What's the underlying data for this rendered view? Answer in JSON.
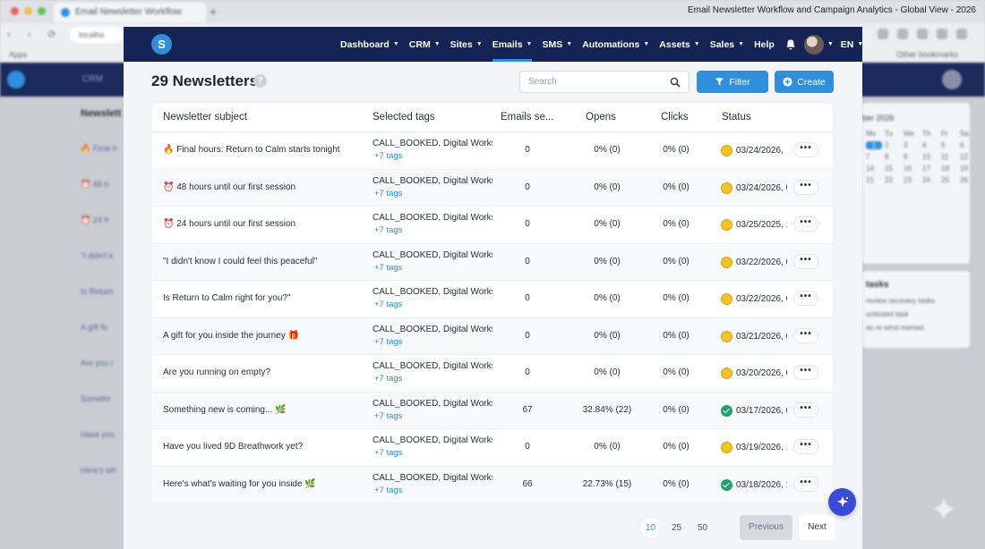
{
  "browser": {
    "tab_title": "Email Newsletter Workflow",
    "url": "localho",
    "bookmarks_left": "Apps",
    "bookmarks_right": "Other bookmarks"
  },
  "window_title": "Email Newsletter Workflow and Campaign Analytics - Global View - 2026",
  "background": {
    "nav_label": "CRM",
    "left_header": "Newslett",
    "left_items": [
      "🔥 Final h",
      "⏰ 48 h",
      "⏰ 24 h",
      "\"I didn't k",
      "Is Return",
      "A gift fo",
      "Are you r",
      "Somethi",
      "Have you",
      "Here's wh"
    ],
    "calendar_header": "ber 2026",
    "calendar_days": [
      "Mo",
      "Tu",
      "We",
      "Th",
      "Fr",
      "Sa",
      "1",
      "2",
      "3",
      "4",
      "5",
      "6",
      "7",
      "8",
      "9",
      "10",
      "11",
      "12",
      "14",
      "15",
      "16",
      "17",
      "18",
      "19",
      "21",
      "22",
      "23",
      "24",
      "25",
      "26"
    ],
    "tasks_title": "tasks",
    "tasks": [
      "review recovery tasks",
      "untested task",
      "as re wind manwd"
    ]
  },
  "logo": "S",
  "nav": {
    "items": [
      {
        "label": "Dashboard",
        "chevron": true
      },
      {
        "label": "CRM",
        "chevron": true
      },
      {
        "label": "Sites",
        "chevron": true
      },
      {
        "label": "Emails",
        "chevron": true,
        "active": true
      },
      {
        "label": "SMS",
        "chevron": true
      },
      {
        "label": "Automations",
        "chevron": true
      },
      {
        "label": "Assets",
        "chevron": true
      },
      {
        "label": "Sales",
        "chevron": true
      },
      {
        "label": "Help",
        "chevron": false
      }
    ],
    "language": "EN"
  },
  "heading": "29 Newsletters",
  "help_glyph": "?",
  "search_placeholder": "Search",
  "filter_label": "Filter",
  "create_label": "Create",
  "columns": [
    "Newsletter subject",
    "Selected tags",
    "Emails se...",
    "Opens",
    "Clicks",
    "Status"
  ],
  "rows": [
    {
      "subject": "🔥 Final hours: Return to Calm starts tonight",
      "tags": "CALL_BOOKED, Digital Worksh",
      "more_tags": "+7 tags",
      "sent": "0",
      "opens": "0% (0)",
      "clicks": "0% (0)",
      "status_icon": "scheduled",
      "status": "03/24/2026,"
    },
    {
      "subject": "⏰ 48 hours until our first session",
      "tags": "CALL_BOOKED, Digital Worksh",
      "more_tags": "+7 tags",
      "sent": "0",
      "opens": "0% (0)",
      "clicks": "0% (0)",
      "status_icon": "scheduled",
      "status": "03/24/2026, 0"
    },
    {
      "subject": "⏰ 24 hours until our first session",
      "tags": "CALL_BOOKED, Digital Worksh",
      "more_tags": "+7 tags",
      "sent": "0",
      "opens": "0% (0)",
      "clicks": "0% (0)",
      "status_icon": "scheduled",
      "status": "03/25/2025, 1"
    },
    {
      "subject": "\"I didn't know I could feel this peaceful\"",
      "tags": "CALL_BOOKED, Digital Worksh",
      "more_tags": "+7 tags",
      "sent": "0",
      "opens": "0% (0)",
      "clicks": "0% (0)",
      "status_icon": "scheduled",
      "status": "03/22/2026, 0"
    },
    {
      "subject": "Is Return to Calm right for you?\"",
      "tags": "CALL_BOOKED, Digital Worksh",
      "more_tags": "+7 tags",
      "sent": "0",
      "opens": "0% (0)",
      "clicks": "0% (0)",
      "status_icon": "scheduled",
      "status": "03/22/2026, 0"
    },
    {
      "subject": "A gift for you inside the journey 🎁",
      "tags": "CALL_BOOKED, Digital Worksh",
      "more_tags": "+7 tags",
      "sent": "0",
      "opens": "0% (0)",
      "clicks": "0% (0)",
      "status_icon": "scheduled",
      "status": "03/21/2026, 0"
    },
    {
      "subject": "Are you running on empty?",
      "tags": "CALL_BOOKED, Digital Worksh",
      "more_tags": "+7 tags",
      "sent": "0",
      "opens": "0% (0)",
      "clicks": "0% (0)",
      "status_icon": "scheduled",
      "status": "03/20/2026, 0"
    },
    {
      "subject": "Something new is coming... 🌿",
      "tags": "CALL_BOOKED, Digital Worksh",
      "more_tags": "+7 tags",
      "sent": "67",
      "opens": "32.84% (22)",
      "clicks": "0% (0)",
      "status_icon": "sent",
      "status": "03/17/2026, 0"
    },
    {
      "subject": "Have you lived 9D Breathwork yet?",
      "tags": "CALL_BOOKED, Digital Worksh",
      "more_tags": "+7 tags",
      "sent": "0",
      "opens": "0% (0)",
      "clicks": "0% (0)",
      "status_icon": "scheduled",
      "status": "03/19/2026, 1"
    },
    {
      "subject": "Here's what's waiting for you inside 🌿",
      "tags": "CALL_BOOKED, Digital Worksh",
      "more_tags": "+7 tags",
      "sent": "66",
      "opens": "22.73% (15)",
      "clicks": "0% (0)",
      "status_icon": "sent",
      "status": "03/18/2026, 1"
    }
  ],
  "row_menu_glyph": "•••",
  "pagination": {
    "sizes": [
      "10",
      "25",
      "50"
    ],
    "selected_size": "10",
    "previous": "Previous",
    "next": "Next"
  }
}
